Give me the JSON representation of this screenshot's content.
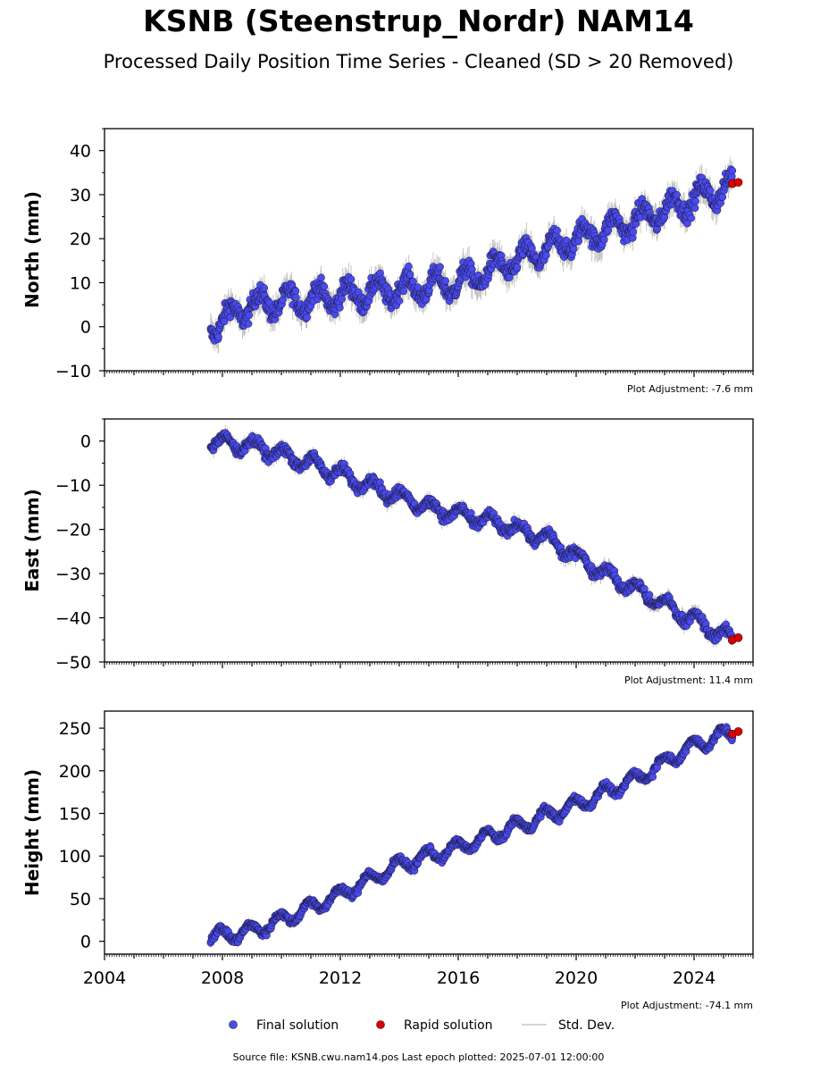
{
  "header": {
    "title": "KSNB (Steenstrup_Nordr) NAM14",
    "subtitle": "Processed Daily Position Time Series - Cleaned (SD > 20 Removed)"
  },
  "footer": {
    "source_text": "Source file: KSNB.cwu.nam14.pos  Last epoch plotted: 2025-07-01 12:00:00"
  },
  "legend": {
    "final_label": "Final solution",
    "rapid_label": "Rapid solution",
    "std_label": "Std. Dev."
  },
  "colors": {
    "final": "#4a4aef",
    "rapid": "#e00000",
    "std": "#b8b8b8"
  },
  "chart_data": [
    {
      "type": "scatter",
      "name": "north",
      "ylabel": "North (mm)",
      "adjustment_label": "Plot Adjustment: -7.6 mm",
      "xlim": [
        2004,
        2026
      ],
      "ylim": [
        -10,
        45
      ],
      "yticks": [
        -10,
        0,
        10,
        20,
        30,
        40
      ],
      "ytick_labels": [
        "−10",
        "0",
        "10",
        "20",
        "30",
        "40"
      ],
      "xticks": [
        2004,
        2008,
        2012,
        2016,
        2020,
        2024
      ],
      "x_start": 2007.6,
      "x_end": 2025.3,
      "trend": [
        [
          2007.6,
          0
        ],
        [
          2009,
          5
        ],
        [
          2012,
          7
        ],
        [
          2016,
          10
        ],
        [
          2018,
          15
        ],
        [
          2020,
          20
        ],
        [
          2022,
          24
        ],
        [
          2024,
          29
        ],
        [
          2025.3,
          32
        ]
      ],
      "noise": 3,
      "seasonal": 2.5,
      "rapid_x": [
        2025.3,
        2025.5
      ],
      "rapid_y": [
        32.5,
        32.8
      ]
    },
    {
      "type": "scatter",
      "name": "east",
      "ylabel": "East (mm)",
      "adjustment_label": "Plot Adjustment: 11.4 mm",
      "xlim": [
        2004,
        2026
      ],
      "ylim": [
        -50,
        5
      ],
      "yticks": [
        -50,
        -40,
        -30,
        -20,
        -10,
        0
      ],
      "ytick_labels": [
        "−50",
        "−40",
        "−30",
        "−20",
        "−10",
        "0"
      ],
      "xticks": [
        2004,
        2008,
        2012,
        2016,
        2020,
        2024
      ],
      "x_start": 2007.6,
      "x_end": 2025.3,
      "trend": [
        [
          2007.6,
          0
        ],
        [
          2009,
          -1
        ],
        [
          2011,
          -5
        ],
        [
          2013,
          -10
        ],
        [
          2015,
          -15
        ],
        [
          2017,
          -18
        ],
        [
          2019,
          -22
        ],
        [
          2021,
          -30
        ],
        [
          2023,
          -37
        ],
        [
          2025.3,
          -45
        ]
      ],
      "noise": 1.6,
      "seasonal": 1.5,
      "rapid_x": [
        2025.3,
        2025.5
      ],
      "rapid_y": [
        -45,
        -44.5
      ]
    },
    {
      "type": "scatter",
      "name": "height",
      "ylabel": "Height (mm)",
      "adjustment_label": "Plot Adjustment: -74.1 mm",
      "xlim": [
        2004,
        2026
      ],
      "ylim": [
        -15,
        270
      ],
      "yticks": [
        0,
        50,
        100,
        150,
        200,
        250
      ],
      "ytick_labels": [
        "0",
        "50",
        "100",
        "150",
        "200",
        "250"
      ],
      "xticks": [
        2004,
        2008,
        2012,
        2016,
        2020,
        2024
      ],
      "xtick_labels": [
        "2004",
        "2008",
        "2012",
        "2016",
        "2020",
        "2024"
      ],
      "x_start": 2007.6,
      "x_end": 2025.3,
      "trend": [
        [
          2007.6,
          5
        ],
        [
          2009,
          12
        ],
        [
          2010,
          25
        ],
        [
          2012,
          55
        ],
        [
          2014,
          90
        ],
        [
          2016,
          110
        ],
        [
          2018,
          135
        ],
        [
          2020,
          160
        ],
        [
          2022,
          190
        ],
        [
          2024,
          230
        ],
        [
          2025.3,
          245
        ]
      ],
      "noise": 6,
      "seasonal": 8,
      "rapid_x": [
        2025.3,
        2025.5
      ],
      "rapid_y": [
        243,
        246
      ]
    }
  ]
}
